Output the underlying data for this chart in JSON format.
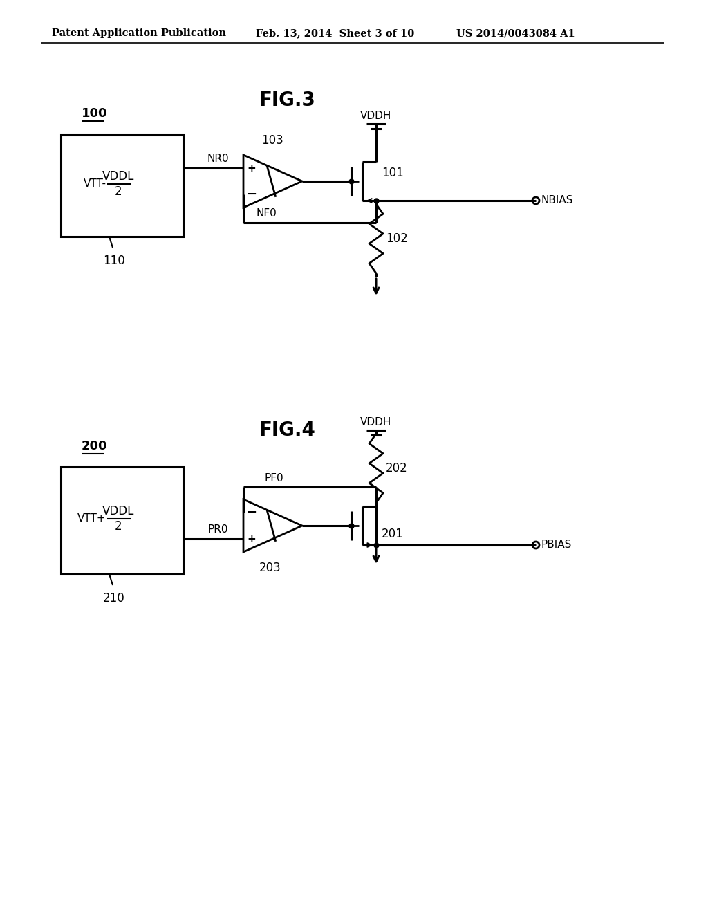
{
  "bg_color": "#ffffff",
  "header_left": "Patent Application Publication",
  "header_mid": "Feb. 13, 2014  Sheet 3 of 10",
  "header_right": "US 2014/0043084 A1",
  "fig3_title": "FIG.3",
  "fig4_title": "FIG.4",
  "fig3_label": "100",
  "fig4_label": "200",
  "fig3_ref110": "110",
  "fig4_ref210": "210",
  "lw": 2.0,
  "lw_thick": 2.2
}
